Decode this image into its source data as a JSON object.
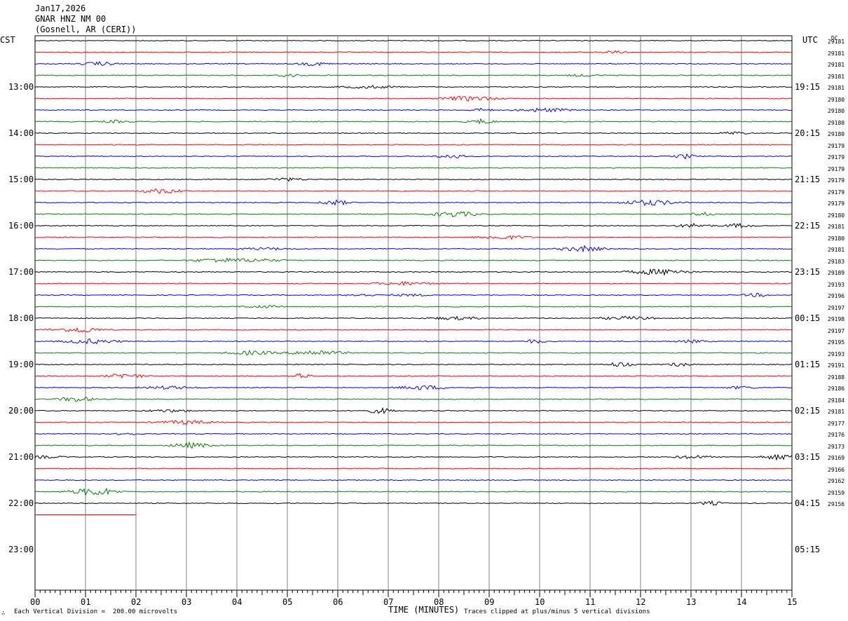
{
  "header": {
    "date": "Jan17,2026",
    "station": "GNAR HNZ NM 00",
    "location": "(Gosnell, AR (CERI))"
  },
  "left_zone_label": "CST",
  "right_zone_label": "UTC",
  "dc_header": "DC",
  "chart_data": {
    "type": "line",
    "title": "Jan17,2026 GNAR HNZ NM 00 (Gosnell, AR (CERI))",
    "xlabel": "TIME (MINUTES)",
    "x_ticks": [
      "00",
      "01",
      "02",
      "03",
      "04",
      "05",
      "06",
      "07",
      "08",
      "09",
      "10",
      "11",
      "12",
      "13",
      "14",
      "15"
    ],
    "xlim": [
      0,
      15
    ],
    "left_hour_labels": [
      "13:00",
      "14:00",
      "15:00",
      "16:00",
      "17:00",
      "18:00",
      "19:00",
      "20:00",
      "21:00",
      "22:00",
      "23:00"
    ],
    "right_hour_labels": [
      "19:15",
      "20:15",
      "21:15",
      "22:15",
      "23:15",
      "00:15",
      "01:15",
      "02:15",
      "03:15",
      "04:15",
      "05:15"
    ],
    "trace_colors": [
      "#000000",
      "#ff0000",
      "#0000ff",
      "#008000"
    ],
    "traces_per_hour": 4,
    "trace_count": 42,
    "partial_last_trace_minutes": 2,
    "dc_values": [
      "29181",
      "29181",
      "29181",
      "29181",
      "29181",
      "29180",
      "29180",
      "29180",
      "29180",
      "29179",
      "29179",
      "29179",
      "29179",
      "29179",
      "29179",
      "29180",
      "29181",
      "29180",
      "29181",
      "29183",
      "29189",
      "29193",
      "29196",
      "29197",
      "29198",
      "29197",
      "29195",
      "29193",
      "29191",
      "29188",
      "29186",
      "29184",
      "29181",
      "29177",
      "29176",
      "29173",
      "29169",
      "29166",
      "29162",
      "29159",
      "29156"
    ],
    "grid": true
  },
  "footer": {
    "scale": "Each Vertical Division =  200.00 microvolts",
    "xlabel": "TIME (MINUTES)",
    "clip": "Traces clipped at plus/minus 5 vertical divisions",
    "corner_mark": "∴"
  }
}
